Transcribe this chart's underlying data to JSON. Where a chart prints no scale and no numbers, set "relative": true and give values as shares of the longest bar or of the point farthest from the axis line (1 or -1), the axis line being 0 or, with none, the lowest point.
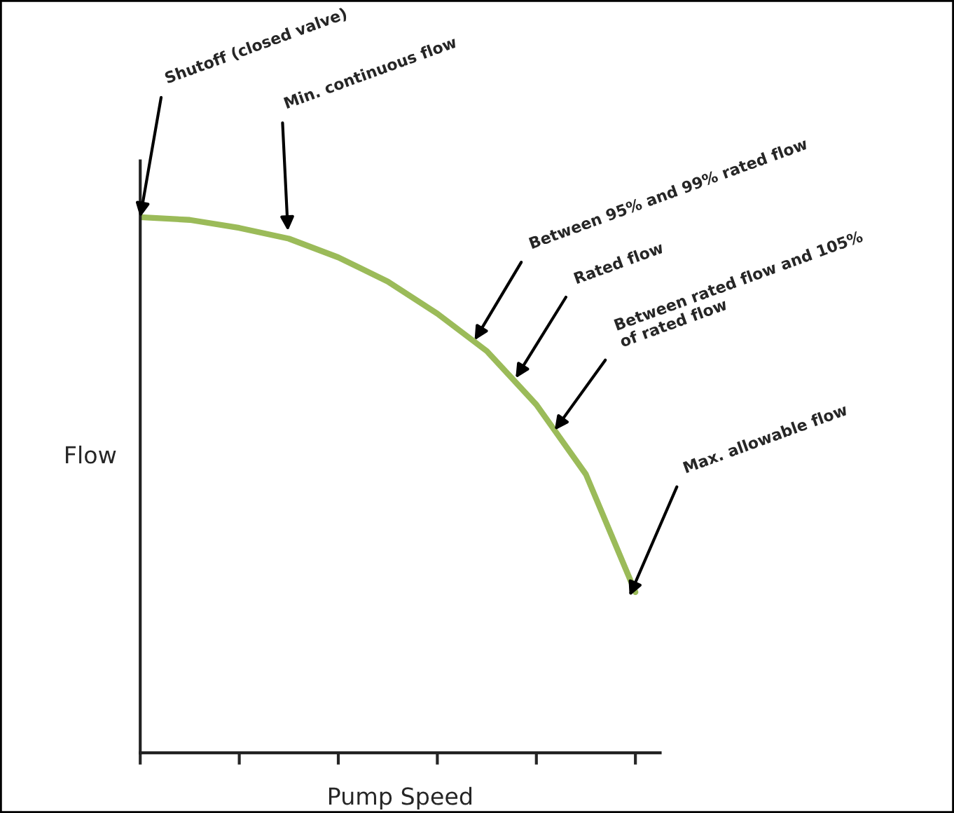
{
  "chart_data": {
    "type": "line",
    "relative": true,
    "xlabel": "Pump Speed",
    "ylabel": "Flow",
    "categories": [
      null,
      null,
      null,
      null,
      null,
      null,
      null,
      null,
      null,
      null,
      null
    ],
    "series": [
      {
        "color": "#9bbb59",
        "values": [
          1,
          0.995,
          0.98,
          0.96,
          0.925,
          0.88,
          0.82,
          0.75,
          0.65,
          0.52,
          0.3
        ]
      }
    ],
    "annotations": [
      "Shutoff (closed valve)",
      "Min. continuous flow",
      "Between 95% and 99% rated flow",
      "Rated flow",
      "Between rated flow and 105%\nof rated flow",
      "Max. allowable flow"
    ],
    "grid": false,
    "legend": false
  }
}
